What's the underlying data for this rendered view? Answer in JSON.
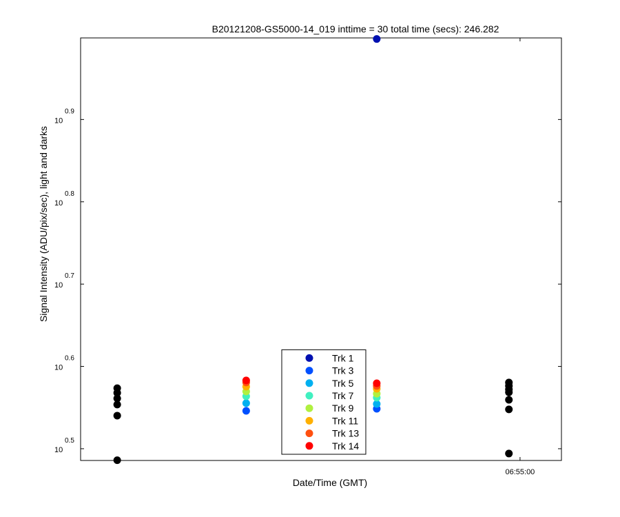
{
  "chart_data": {
    "type": "scatter",
    "title": "B20121208-GS5000-14_019 inttime = 30 total time (secs): 246.282",
    "x_label": "Date/Time (GMT)",
    "y_label": "Signal Intensity (ADU/pix/sec), light and darks",
    "log_y": true,
    "xlim": [
      "06:50:24",
      "06:55:26"
    ],
    "xticks": [
      "06:55:00"
    ],
    "ylim": [
      3.06,
      9.98
    ],
    "yticks": [
      {
        "value": 3.1623,
        "label": "10",
        "superscript": "0.5"
      },
      {
        "value": 3.9811,
        "label": "10",
        "superscript": "0.6"
      },
      {
        "value": 5.0119,
        "label": "10",
        "superscript": "0.7"
      },
      {
        "value": 6.3096,
        "label": "10",
        "superscript": "0.8"
      },
      {
        "value": 7.9433,
        "label": "10",
        "superscript": "0.9"
      }
    ],
    "legend_position": "south",
    "series": [
      {
        "color": "#000000",
        "x": [
          "06:50:47",
          "06:50:47",
          "06:50:47",
          "06:50:47",
          "06:50:47",
          "06:50:47",
          "06:54:53",
          "06:54:53",
          "06:54:53",
          "06:54:53",
          "06:54:53",
          "06:54:53",
          "06:54:53"
        ],
        "values": [
          3.062,
          3.469,
          3.578,
          3.64,
          3.697,
          3.746,
          3.12,
          3.53,
          3.626,
          3.703,
          3.733,
          3.77,
          3.806
        ]
      },
      {
        "name": "Trk 1",
        "color": "#0010b0",
        "x": [
          "06:53:30"
        ],
        "values": [
          9.95
        ]
      },
      {
        "name": "Trk 3",
        "color": "#0050ff",
        "x": [
          "06:52:08",
          "06:53:30"
        ],
        "values": [
          3.516,
          3.536
        ]
      },
      {
        "name": "Trk 5",
        "color": "#00b0f0",
        "x": [
          "06:52:08",
          "06:53:30"
        ],
        "values": [
          3.592,
          3.584
        ]
      },
      {
        "name": "Trk 7",
        "color": "#40f0c0",
        "x": [
          "06:52:08",
          "06:53:30"
        ],
        "values": [
          3.662,
          3.648
        ]
      },
      {
        "name": "Trk 9",
        "color": "#b0f040",
        "x": [
          "06:52:08",
          "06:53:30"
        ],
        "values": [
          3.712,
          3.689
        ]
      },
      {
        "name": "Trk 11",
        "color": "#ffb000",
        "x": [
          "06:52:08",
          "06:53:30"
        ],
        "values": [
          3.762,
          3.74
        ]
      },
      {
        "name": "Trk 13",
        "color": "#ff5010",
        "x": [
          "06:52:08",
          "06:53:30"
        ],
        "values": [
          3.806,
          3.77
        ]
      },
      {
        "name": "Trk 14",
        "color": "#ff0000",
        "x": [
          "06:52:08",
          "06:53:30"
        ],
        "values": [
          3.828,
          3.798
        ]
      }
    ]
  }
}
